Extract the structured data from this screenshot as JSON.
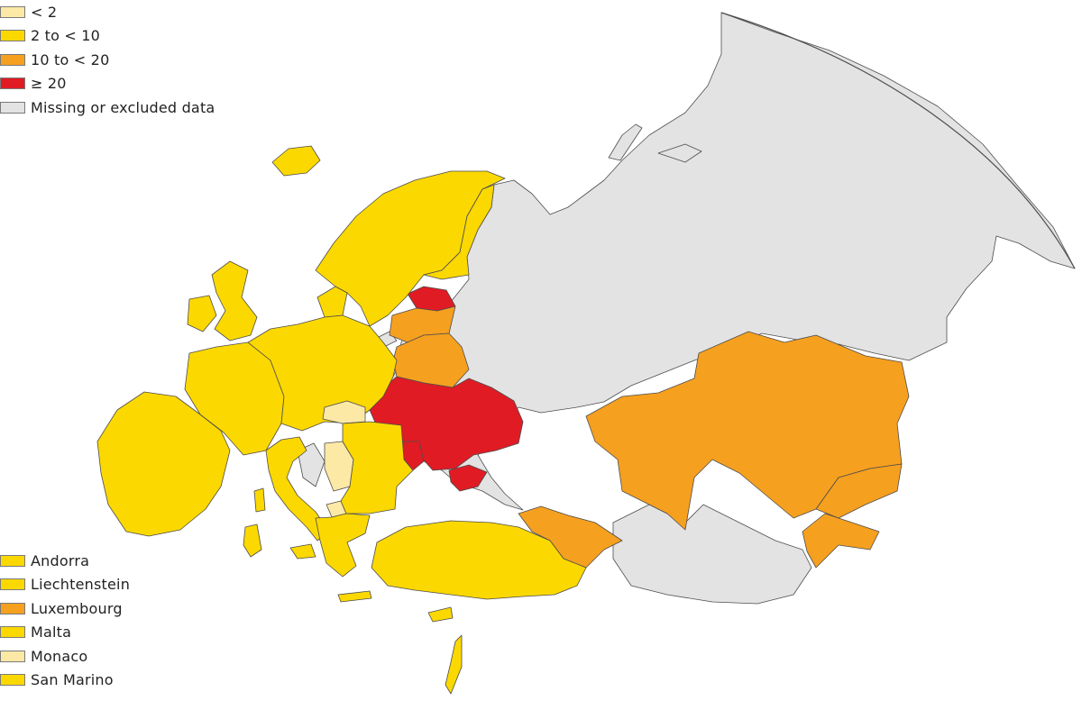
{
  "colors": {
    "lt2": "#fde9a6",
    "c2to10": "#fbd800",
    "c10to20": "#f6a01f",
    "ge20": "#e01b24",
    "missing": "#e3e3e3",
    "border": "#4d4d4d"
  },
  "legend": {
    "classes": [
      {
        "label": "< 2",
        "color_key": "lt2"
      },
      {
        "label": "2 to < 10",
        "color_key": "c2to10"
      },
      {
        "label": "10 to < 20",
        "color_key": "c10to20"
      },
      {
        "label": "≥ 20",
        "color_key": "ge20"
      },
      {
        "label": "Missing or excluded data",
        "color_key": "missing"
      }
    ],
    "small_countries": [
      {
        "label": "Andorra",
        "color_key": "c2to10"
      },
      {
        "label": "Liechtenstein",
        "color_key": "c2to10"
      },
      {
        "label": "Luxembourg",
        "color_key": "c10to20"
      },
      {
        "label": "Malta",
        "color_key": "c2to10"
      },
      {
        "label": "Monaco",
        "color_key": "lt2"
      },
      {
        "label": "San Marino",
        "color_key": "c2to10"
      }
    ]
  },
  "regions": [
    {
      "id": "russia",
      "color_key": "missing"
    },
    {
      "id": "russia-arctic-islands",
      "color_key": "missing"
    },
    {
      "id": "kaliningrad",
      "color_key": "missing"
    },
    {
      "id": "central-asia-south",
      "color_key": "missing"
    },
    {
      "id": "western-balkans-missing",
      "color_key": "missing"
    },
    {
      "id": "kazakhstan",
      "color_key": "c10to20"
    },
    {
      "id": "kyrgyzstan",
      "color_key": "c10to20"
    },
    {
      "id": "tajikistan",
      "color_key": "c10to20"
    },
    {
      "id": "caucasus",
      "color_key": "c10to20"
    },
    {
      "id": "latvia-lithuania",
      "color_key": "c10to20"
    },
    {
      "id": "belarus",
      "color_key": "c10to20"
    },
    {
      "id": "ukraine",
      "color_key": "ge20"
    },
    {
      "id": "crimea",
      "color_key": "ge20"
    },
    {
      "id": "estonia",
      "color_key": "ge20"
    },
    {
      "id": "moldova",
      "color_key": "ge20"
    },
    {
      "id": "hungary",
      "color_key": "lt2"
    },
    {
      "id": "bosnia-serbia",
      "color_key": "lt2"
    },
    {
      "id": "north-macedonia",
      "color_key": "lt2"
    },
    {
      "id": "iceland",
      "color_key": "c2to10"
    },
    {
      "id": "norway-sweden",
      "color_key": "c2to10"
    },
    {
      "id": "finland",
      "color_key": "c2to10"
    },
    {
      "id": "uk",
      "color_key": "c2to10"
    },
    {
      "id": "ireland",
      "color_key": "c2to10"
    },
    {
      "id": "iberia",
      "color_key": "c2to10"
    },
    {
      "id": "france",
      "color_key": "c2to10"
    },
    {
      "id": "central-europe",
      "color_key": "c2to10"
    },
    {
      "id": "italy",
      "color_key": "c2to10"
    },
    {
      "id": "sicily",
      "color_key": "c2to10"
    },
    {
      "id": "sardinia",
      "color_key": "c2to10"
    },
    {
      "id": "corsica",
      "color_key": "c2to10"
    },
    {
      "id": "romania-bulgaria",
      "color_key": "c2to10"
    },
    {
      "id": "greece",
      "color_key": "c2to10"
    },
    {
      "id": "crete",
      "color_key": "c2to10"
    },
    {
      "id": "turkey",
      "color_key": "c2to10"
    },
    {
      "id": "cyprus",
      "color_key": "c2to10"
    },
    {
      "id": "israel",
      "color_key": "c2to10"
    },
    {
      "id": "denmark",
      "color_key": "c2to10"
    }
  ]
}
